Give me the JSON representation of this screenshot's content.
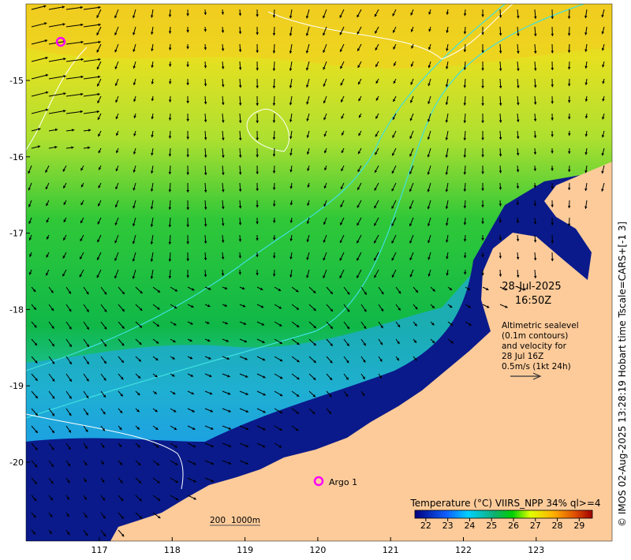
{
  "map": {
    "lat_ticks": [
      "-15",
      "-16",
      "-17",
      "-18",
      "-19",
      "-20"
    ],
    "lon_ticks": [
      "117",
      "118",
      "119",
      "120",
      "121",
      "122",
      "123"
    ],
    "date": "28-Jul-2025",
    "time": "16:50Z",
    "annotation_lines": [
      "Altimetric sealevel",
      "(0.1m contours)",
      "and velocity for",
      "28 Jul 16Z",
      "0.5m/s (1kt 24h)"
    ],
    "argo_label": "Argo 1",
    "scale_bar": {
      "left": "200",
      "right": "1000m"
    },
    "colorbar": {
      "title": "Temperature (°C) VIIRS_NPP 34% ql>=4",
      "ticks": [
        "22",
        "23",
        "24",
        "25",
        "26",
        "27",
        "28",
        "29"
      ],
      "range": [
        21.5,
        29.6
      ]
    },
    "credit": "© IMOS 02-Aug-2025 13:28:19 Hobart time Tscale=CARS+[-1 3]",
    "colors": {
      "land": "#fdcb9a",
      "argo": "#ff00ff",
      "contour_white": "#ffffff",
      "contour_cyan": "#40e0e0"
    }
  }
}
